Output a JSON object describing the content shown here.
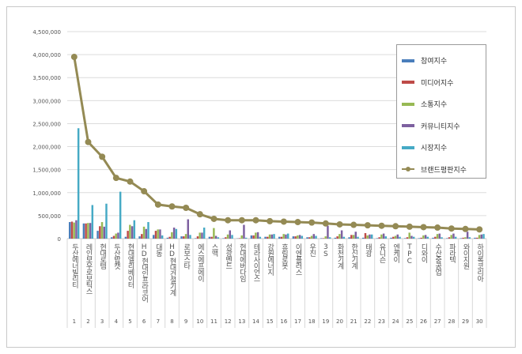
{
  "chart_data": {
    "type": "bar+line",
    "title": "",
    "categories": [
      "두산에너빌리티",
      "레인보우로보틱스",
      "현대로템",
      "두산밥캣",
      "현대엘리베이터",
      "HD현대인프라코어",
      "대동",
      "HD현대건설기계",
      "로보스타",
      "에스에프에이",
      "스맥",
      "성광벤드",
      "현대에버다임",
      "테라사이언스",
      "강원에너지",
      "휴림로봇",
      "이엔플러스",
      "우진",
      "3S",
      "화천기계",
      "한신기계",
      "태광",
      "유니슨",
      "엔케이",
      "TPC",
      "디와이",
      "수산중공업",
      "파라텍",
      "와이지원",
      "하이록코리아"
    ],
    "ranks": [
      "1",
      "2",
      "3",
      "4",
      "5",
      "6",
      "7",
      "8",
      "9",
      "10",
      "11",
      "12",
      "13",
      "14",
      "15",
      "16",
      "17",
      "18",
      "19",
      "20",
      "21",
      "22",
      "23",
      "24",
      "25",
      "26",
      "27",
      "28",
      "29",
      "30"
    ],
    "y_ticks": [
      "0",
      "500,000",
      "1,000,000",
      "1,500,000",
      "2,000,000",
      "2,500,000",
      "3,000,000",
      "3,500,000",
      "4,000,000",
      "4,500,000"
    ],
    "ylim": [
      0,
      4500000
    ],
    "grid": true,
    "legend_position": "top-right",
    "series": [
      {
        "name": "참여지수",
        "kind": "bar",
        "color": "#4a7ebb",
        "values": [
          360000,
          330000,
          170000,
          30000,
          40000,
          50000,
          80000,
          20000,
          50000,
          10000,
          40000,
          10000,
          5000,
          70000,
          40000,
          40000,
          50000,
          30000,
          10000,
          20000,
          30000,
          20000,
          10000,
          20000,
          10000,
          10000,
          20000,
          10000,
          10000,
          20000
        ]
      },
      {
        "name": "미디어지수",
        "kind": "bar",
        "color": "#be4b48",
        "values": [
          370000,
          330000,
          270000,
          60000,
          170000,
          100000,
          170000,
          40000,
          50000,
          50000,
          40000,
          30000,
          10000,
          70000,
          40000,
          40000,
          50000,
          30000,
          10000,
          50000,
          80000,
          120000,
          30000,
          40000,
          30000,
          20000,
          40000,
          30000,
          20000,
          20000
        ]
      },
      {
        "name": "소통지수",
        "kind": "bar",
        "color": "#98b954",
        "values": [
          350000,
          340000,
          360000,
          110000,
          300000,
          260000,
          200000,
          140000,
          100000,
          130000,
          230000,
          90000,
          70000,
          130000,
          90000,
          100000,
          70000,
          60000,
          50000,
          100000,
          80000,
          70000,
          90000,
          60000,
          130000,
          70000,
          100000,
          80000,
          30000,
          80000
        ]
      },
      {
        "name": "커뮤니티지수",
        "kind": "bar",
        "color": "#7d60a0",
        "values": [
          400000,
          340000,
          260000,
          130000,
          270000,
          210000,
          200000,
          240000,
          420000,
          130000,
          60000,
          180000,
          300000,
          140000,
          90000,
          90000,
          80000,
          100000,
          280000,
          180000,
          150000,
          90000,
          110000,
          90000,
          60000,
          80000,
          110000,
          110000,
          150000,
          90000
        ]
      },
      {
        "name": "시장지수",
        "kind": "bar",
        "color": "#46aac5",
        "values": [
          2400000,
          730000,
          760000,
          1020000,
          400000,
          360000,
          70000,
          210000,
          80000,
          240000,
          30000,
          80000,
          20000,
          40000,
          100000,
          110000,
          60000,
          60000,
          30000,
          40000,
          40000,
          90000,
          50000,
          40000,
          40000,
          40000,
          30000,
          40000,
          30000,
          100000
        ]
      },
      {
        "name": "브랜드평판지수",
        "kind": "line",
        "color": "#948a54",
        "values": [
          3950000,
          2100000,
          1780000,
          1320000,
          1240000,
          1030000,
          740000,
          700000,
          670000,
          530000,
          430000,
          400000,
          400000,
          400000,
          380000,
          370000,
          360000,
          350000,
          330000,
          310000,
          300000,
          290000,
          280000,
          270000,
          260000,
          250000,
          240000,
          220000,
          210000,
          200000
        ]
      }
    ]
  }
}
